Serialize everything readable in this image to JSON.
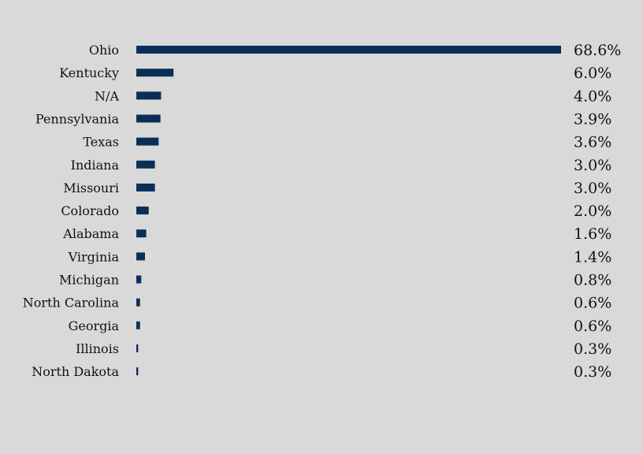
{
  "chart_data": {
    "type": "bar",
    "orientation": "horizontal",
    "categories": [
      "Ohio",
      "Kentucky",
      "N/A",
      "Pennsylvania",
      "Texas",
      "Indiana",
      "Missouri",
      "Colorado",
      "Alabama",
      "Virginia",
      "Michigan",
      "North Carolina",
      "Georgia",
      "Illinois",
      "North Dakota"
    ],
    "values": [
      68.6,
      6.0,
      4.0,
      3.9,
      3.6,
      3.0,
      3.0,
      2.0,
      1.6,
      1.4,
      0.8,
      0.6,
      0.6,
      0.3,
      0.3
    ],
    "value_labels": [
      "68.6%",
      "6.0%",
      "4.0%",
      "3.9%",
      "3.6%",
      "3.0%",
      "3.0%",
      "2.0%",
      "1.6%",
      "1.4%",
      "0.8%",
      "0.6%",
      "0.6%",
      "0.3%",
      "0.3%"
    ],
    "title": "",
    "xlabel": "",
    "ylabel": "",
    "xlim": [
      0,
      68.6
    ],
    "grid": false,
    "legend": "none",
    "colors": {
      "background": "#d9d9d9",
      "bar": "#0a2f57",
      "text": "#111111"
    }
  }
}
